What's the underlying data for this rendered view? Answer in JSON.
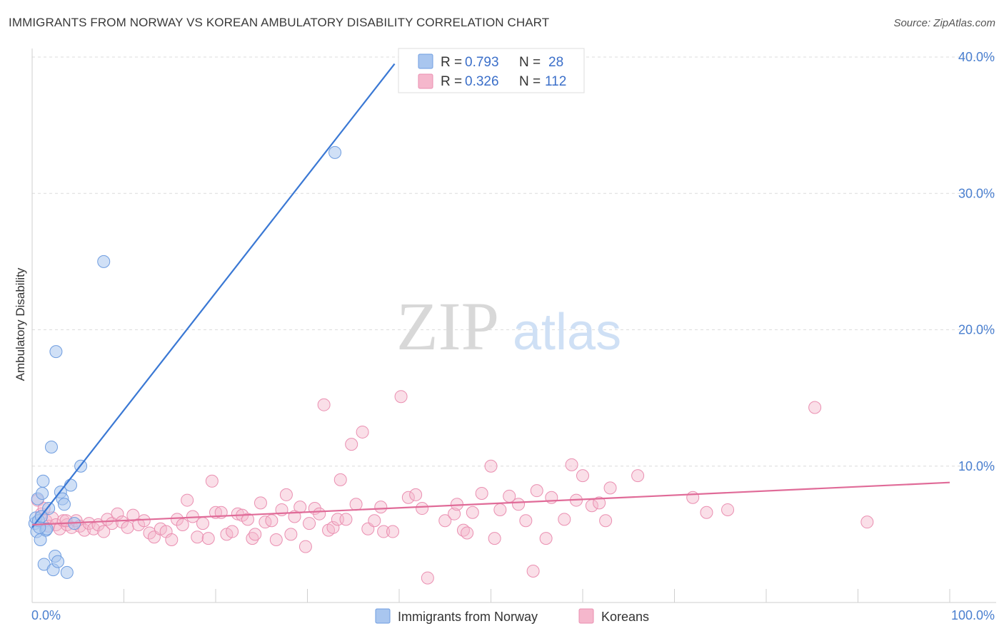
{
  "title": "IMMIGRANTS FROM NORWAY VS KOREAN AMBULATORY DISABILITY CORRELATION CHART",
  "source": "Source: ZipAtlas.com",
  "watermark": {
    "zip": "ZIP",
    "atlas": "atlas"
  },
  "colors": {
    "blue": "#3a78d4",
    "blue_fill": "#a9c6ef",
    "pink": "#e06b98",
    "pink_fill": "#f5b7cc",
    "grid": "#dcdcdc",
    "axis_text": "#4a7fcf"
  },
  "legend": {
    "r_label": "R =",
    "n_label": "N =",
    "series": [
      {
        "name": "Immigrants from Norway",
        "r": "0.793",
        "n": "28"
      },
      {
        "name": "Koreans",
        "r": "0.326",
        "n": "112"
      }
    ]
  },
  "chart_data": {
    "type": "scatter",
    "title": "IMMIGRANTS FROM NORWAY VS KOREAN AMBULATORY DISABILITY CORRELATION CHART",
    "xlabel": "",
    "ylabel": "Ambulatory Disability",
    "xlim": [
      0,
      100
    ],
    "ylim": [
      0,
      40
    ],
    "x_tick_labels": [
      "0.0%",
      "100.0%"
    ],
    "y_ticks": [
      10,
      20,
      30,
      40
    ],
    "y_tick_labels": [
      "10.0%",
      "20.0%",
      "30.0%",
      "40.0%"
    ],
    "series": [
      {
        "name": "Immigrants from Norway",
        "color": "#3a78d4",
        "trend": {
          "x0": 0,
          "y0": 5.5,
          "x1": 39.5,
          "y1": 39.5
        },
        "points": [
          [
            0.3,
            5.8
          ],
          [
            0.4,
            6.2
          ],
          [
            0.5,
            5.2
          ],
          [
            0.6,
            7.6
          ],
          [
            0.7,
            6.0
          ],
          [
            0.9,
            4.6
          ],
          [
            1.1,
            8.0
          ],
          [
            1.2,
            8.9
          ],
          [
            1.3,
            2.8
          ],
          [
            1.5,
            5.3
          ],
          [
            1.6,
            5.4
          ],
          [
            1.8,
            6.9
          ],
          [
            2.1,
            11.4
          ],
          [
            2.3,
            2.4
          ],
          [
            2.5,
            3.4
          ],
          [
            2.6,
            18.4
          ],
          [
            2.8,
            3.0
          ],
          [
            3.1,
            8.1
          ],
          [
            3.3,
            7.6
          ],
          [
            3.5,
            7.2
          ],
          [
            3.8,
            2.2
          ],
          [
            4.2,
            8.6
          ],
          [
            4.6,
            5.8
          ],
          [
            5.3,
            10.0
          ],
          [
            7.8,
            25.0
          ],
          [
            33.0,
            33.0
          ],
          [
            0.8,
            5.5
          ],
          [
            1.0,
            6.3
          ]
        ]
      },
      {
        "name": "Koreans",
        "color": "#e06b98",
        "trend": {
          "x0": 0,
          "y0": 5.7,
          "x1": 100,
          "y1": 8.8
        },
        "points": [
          [
            0.6,
            7.5
          ],
          [
            1.0,
            6.5
          ],
          [
            1.3,
            6.9
          ],
          [
            1.5,
            6.0
          ],
          [
            1.8,
            5.6
          ],
          [
            2.2,
            6.2
          ],
          [
            2.6,
            5.7
          ],
          [
            3.0,
            5.4
          ],
          [
            3.4,
            6.0
          ],
          [
            3.8,
            5.7
          ],
          [
            4.3,
            5.5
          ],
          [
            4.8,
            6.0
          ],
          [
            5.2,
            5.6
          ],
          [
            5.7,
            5.3
          ],
          [
            6.2,
            5.8
          ],
          [
            6.7,
            5.4
          ],
          [
            7.2,
            5.7
          ],
          [
            7.8,
            5.2
          ],
          [
            8.2,
            6.1
          ],
          [
            8.7,
            5.8
          ],
          [
            9.3,
            6.5
          ],
          [
            9.8,
            5.9
          ],
          [
            10.4,
            5.5
          ],
          [
            11.0,
            6.4
          ],
          [
            11.6,
            5.7
          ],
          [
            12.2,
            6.0
          ],
          [
            12.8,
            5.1
          ],
          [
            13.3,
            4.8
          ],
          [
            14.0,
            5.4
          ],
          [
            14.6,
            5.2
          ],
          [
            15.2,
            4.6
          ],
          [
            15.8,
            6.1
          ],
          [
            16.4,
            5.7
          ],
          [
            16.9,
            7.5
          ],
          [
            17.5,
            6.3
          ],
          [
            18.0,
            4.8
          ],
          [
            18.6,
            5.8
          ],
          [
            19.2,
            4.7
          ],
          [
            19.6,
            8.9
          ],
          [
            20.0,
            6.6
          ],
          [
            20.6,
            6.6
          ],
          [
            21.2,
            5.0
          ],
          [
            21.8,
            5.2
          ],
          [
            22.4,
            6.5
          ],
          [
            22.9,
            6.4
          ],
          [
            23.5,
            6.1
          ],
          [
            24.0,
            4.7
          ],
          [
            24.3,
            5.0
          ],
          [
            24.9,
            7.3
          ],
          [
            25.4,
            5.9
          ],
          [
            26.1,
            6.0
          ],
          [
            26.6,
            4.6
          ],
          [
            27.2,
            6.8
          ],
          [
            27.7,
            7.9
          ],
          [
            28.2,
            5.0
          ],
          [
            28.6,
            6.3
          ],
          [
            29.2,
            7.0
          ],
          [
            29.8,
            4.1
          ],
          [
            30.2,
            5.8
          ],
          [
            30.8,
            6.9
          ],
          [
            31.3,
            6.5
          ],
          [
            31.8,
            14.5
          ],
          [
            32.3,
            5.3
          ],
          [
            32.8,
            5.5
          ],
          [
            33.3,
            6.1
          ],
          [
            33.6,
            9.0
          ],
          [
            34.2,
            6.1
          ],
          [
            34.8,
            11.6
          ],
          [
            35.3,
            7.2
          ],
          [
            36.0,
            12.5
          ],
          [
            36.6,
            5.4
          ],
          [
            37.3,
            6.0
          ],
          [
            38.0,
            7.0
          ],
          [
            38.3,
            5.2
          ],
          [
            39.3,
            5.2
          ],
          [
            40.2,
            15.1
          ],
          [
            41.0,
            7.7
          ],
          [
            41.8,
            7.9
          ],
          [
            42.5,
            6.9
          ],
          [
            43.1,
            1.8
          ],
          [
            45.0,
            6.0
          ],
          [
            46.0,
            6.5
          ],
          [
            46.3,
            7.2
          ],
          [
            47.0,
            5.3
          ],
          [
            47.4,
            5.1
          ],
          [
            48.0,
            6.6
          ],
          [
            49.0,
            8.0
          ],
          [
            50.0,
            10.0
          ],
          [
            50.4,
            4.7
          ],
          [
            51.0,
            6.8
          ],
          [
            52.0,
            7.8
          ],
          [
            53.0,
            7.2
          ],
          [
            53.8,
            6.0
          ],
          [
            54.6,
            2.3
          ],
          [
            55.0,
            8.2
          ],
          [
            56.0,
            4.7
          ],
          [
            56.6,
            7.7
          ],
          [
            58.0,
            6.1
          ],
          [
            58.8,
            10.1
          ],
          [
            59.3,
            7.5
          ],
          [
            60.0,
            9.3
          ],
          [
            61.0,
            7.1
          ],
          [
            61.8,
            7.3
          ],
          [
            62.5,
            6.0
          ],
          [
            63.0,
            8.4
          ],
          [
            66.0,
            9.3
          ],
          [
            72.0,
            7.7
          ],
          [
            73.5,
            6.6
          ],
          [
            75.8,
            6.8
          ],
          [
            85.3,
            14.3
          ],
          [
            91.0,
            5.9
          ],
          [
            3.7,
            6.0
          ]
        ]
      }
    ]
  }
}
